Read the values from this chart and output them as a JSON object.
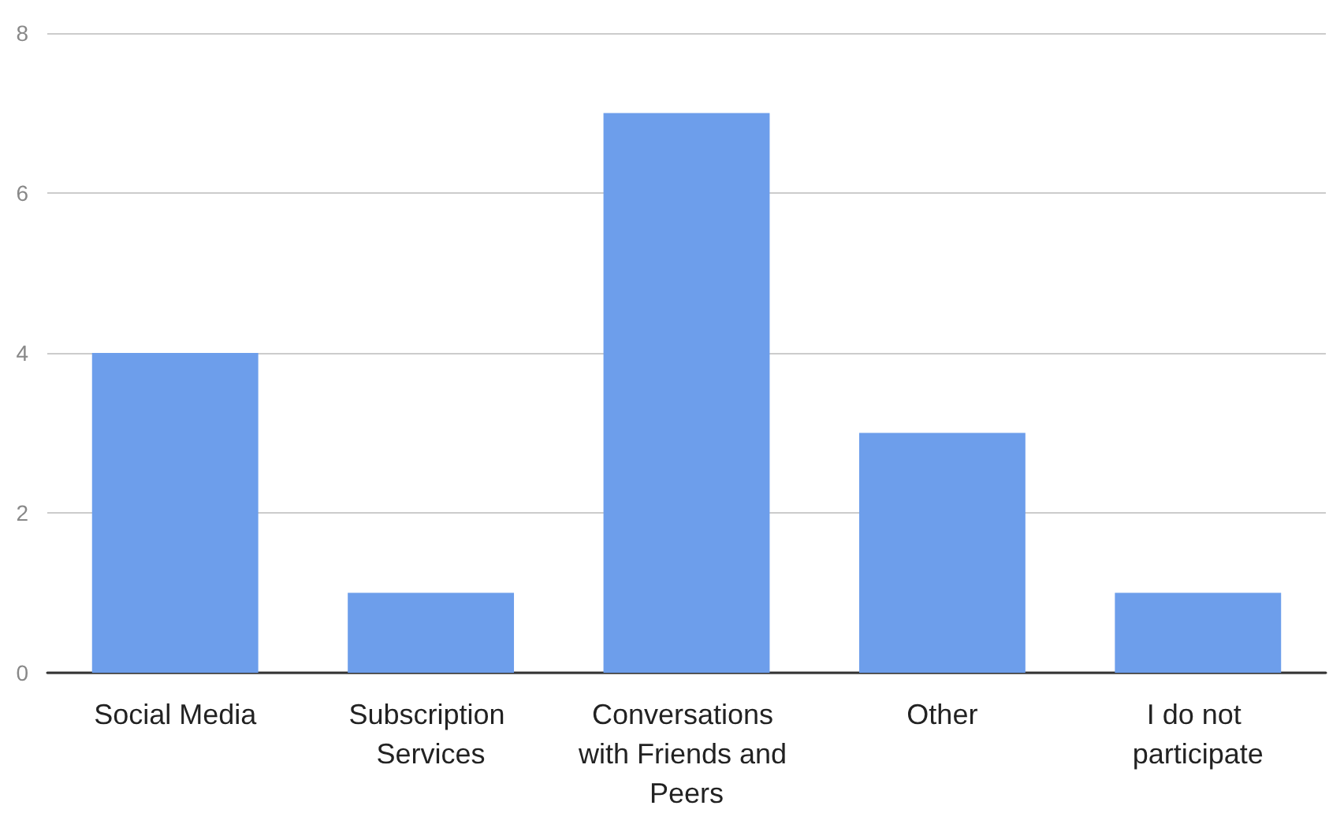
{
  "chart_data": {
    "type": "bar",
    "categories": [
      "Social Media",
      "Subscription Services",
      "Conversations with Friends and Peers",
      "Other",
      "I do not participate"
    ],
    "values": [
      4,
      1,
      7,
      3,
      1
    ],
    "color": "#6d9eeb",
    "ylim": [
      0,
      8
    ],
    "yticks": [
      0,
      2,
      4,
      6,
      8
    ],
    "grid": "y"
  }
}
